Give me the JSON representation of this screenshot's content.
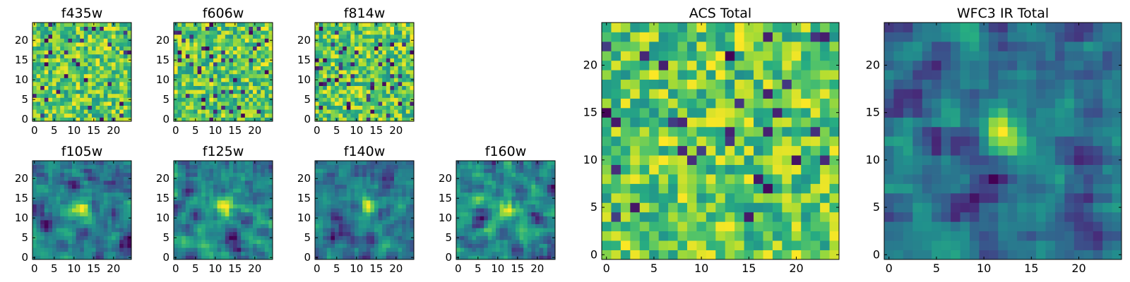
{
  "chart_data": [
    {
      "type": "heatmap",
      "title": "f435w",
      "grid_size": [
        25,
        25
      ],
      "xlim": [
        -0.5,
        24.5
      ],
      "ylim": [
        -0.5,
        24.5
      ],
      "xticks": [
        0,
        5,
        10,
        15,
        20
      ],
      "yticks": [
        0,
        5,
        10,
        15,
        20
      ],
      "colormap": "viridis",
      "seed": 435,
      "spot": null
    },
    {
      "type": "heatmap",
      "title": "f606w",
      "grid_size": [
        25,
        25
      ],
      "xlim": [
        -0.5,
        24.5
      ],
      "ylim": [
        -0.5,
        24.5
      ],
      "xticks": [
        0,
        5,
        10,
        15,
        20
      ],
      "yticks": [
        0,
        5,
        10,
        15,
        20
      ],
      "colormap": "viridis",
      "seed": 606,
      "spot": null
    },
    {
      "type": "heatmap",
      "title": "f814w",
      "grid_size": [
        25,
        25
      ],
      "xlim": [
        -0.5,
        24.5
      ],
      "ylim": [
        -0.5,
        24.5
      ],
      "xticks": [
        0,
        5,
        10,
        15,
        20
      ],
      "yticks": [
        0,
        5,
        10,
        15,
        20
      ],
      "colormap": "viridis",
      "seed": 814,
      "spot": null
    },
    {
      "type": "heatmap",
      "title": "f105w",
      "grid_size": [
        25,
        25
      ],
      "xlim": [
        -0.5,
        24.5
      ],
      "ylim": [
        -0.5,
        24.5
      ],
      "xticks": [
        0,
        5,
        10,
        15,
        20
      ],
      "yticks": [
        0,
        5,
        10,
        15,
        20
      ],
      "colormap": "viridis",
      "seed": 105,
      "spot": [
        12,
        12
      ]
    },
    {
      "type": "heatmap",
      "title": "f125w",
      "grid_size": [
        25,
        25
      ],
      "xlim": [
        -0.5,
        24.5
      ],
      "ylim": [
        -0.5,
        24.5
      ],
      "xticks": [
        0,
        5,
        10,
        15,
        20
      ],
      "yticks": [
        0,
        5,
        10,
        15,
        20
      ],
      "colormap": "viridis",
      "seed": 125,
      "spot": [
        12,
        13
      ]
    },
    {
      "type": "heatmap",
      "title": "f140w",
      "grid_size": [
        25,
        25
      ],
      "xlim": [
        -0.5,
        24.5
      ],
      "ylim": [
        -0.5,
        24.5
      ],
      "xticks": [
        0,
        5,
        10,
        15,
        20
      ],
      "yticks": [
        0,
        5,
        10,
        15,
        20
      ],
      "colormap": "viridis",
      "seed": 140,
      "spot": [
        13,
        13
      ]
    },
    {
      "type": "heatmap",
      "title": "f160w",
      "grid_size": [
        25,
        25
      ],
      "xlim": [
        -0.5,
        24.5
      ],
      "ylim": [
        -0.5,
        24.5
      ],
      "xticks": [
        0,
        5,
        10,
        15,
        20
      ],
      "yticks": [
        0,
        5,
        10,
        15,
        20
      ],
      "colormap": "viridis",
      "seed": 160,
      "spot": [
        13,
        12
      ]
    },
    {
      "type": "heatmap",
      "title": "ACS Total",
      "grid_size": [
        25,
        25
      ],
      "xlim": [
        -0.5,
        24.5
      ],
      "ylim": [
        -0.5,
        24.5
      ],
      "xticks": [
        0,
        5,
        10,
        15,
        20
      ],
      "yticks": [
        0,
        5,
        10,
        15,
        20
      ],
      "colormap": "viridis",
      "seed": 999,
      "spot": null
    },
    {
      "type": "heatmap",
      "title": "WFC3 IR Total",
      "grid_size": [
        25,
        25
      ],
      "xlim": [
        -0.5,
        24.5
      ],
      "ylim": [
        -0.5,
        24.5
      ],
      "xticks": [
        0,
        5,
        10,
        15,
        20
      ],
      "yticks": [
        0,
        5,
        10,
        15,
        20
      ],
      "colormap": "viridis",
      "seed": 777,
      "spot": [
        12,
        13
      ]
    }
  ]
}
